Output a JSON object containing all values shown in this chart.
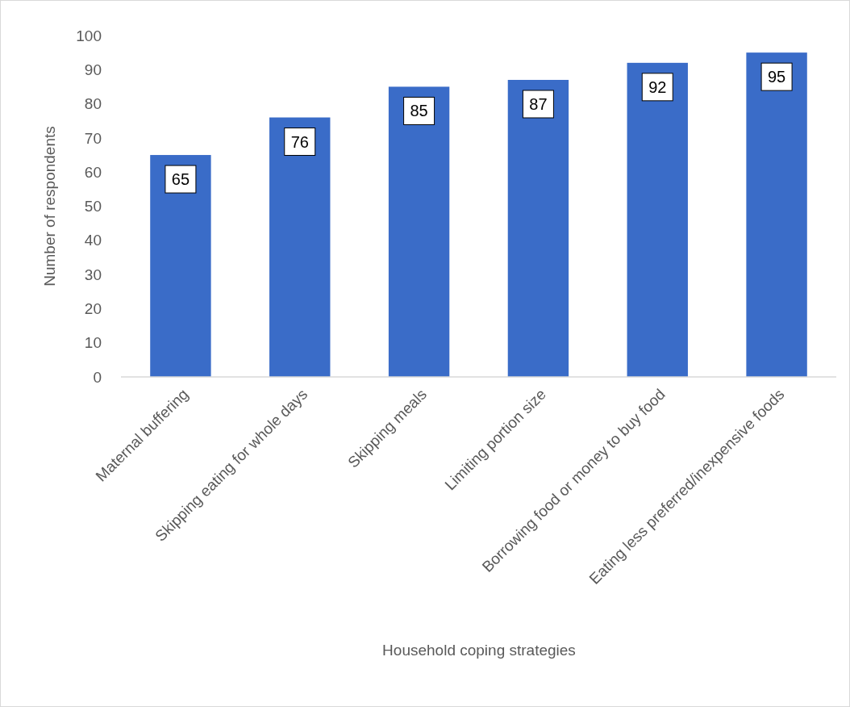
{
  "chart_data": {
    "type": "bar",
    "xlabel": "Household coping strategies",
    "ylabel": "Number of respondents",
    "categories": [
      "Maternal buffering",
      "Skipping eating for whole days",
      "Skipping meals",
      "Limiting portion size",
      "Borrowing food or money to buy food",
      "Eating less preferred/inexpensive foods"
    ],
    "values": [
      65,
      76,
      85,
      87,
      92,
      95
    ],
    "color": "#3a6cc8",
    "ylim": [
      0,
      100
    ],
    "yticks": [
      0,
      10,
      20,
      30,
      40,
      50,
      60,
      70,
      80,
      90,
      100
    ],
    "grid": false,
    "data_labels": true
  }
}
